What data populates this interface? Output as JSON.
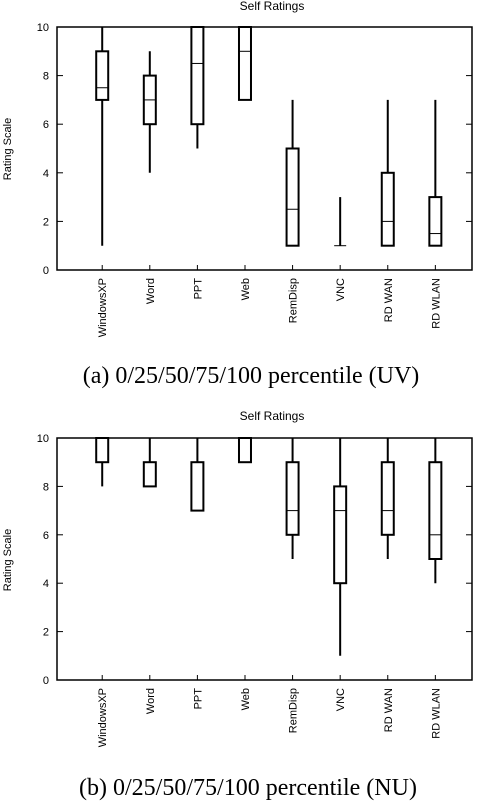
{
  "chart_data": [
    {
      "type": "box",
      "title": "Self Ratings",
      "ylabel": "Rating Scale",
      "caption": "(a) 0/25/50/75/100 percentile (UV)",
      "ylim": [
        0,
        10
      ],
      "yticks": [
        "0",
        "2",
        "4",
        "6",
        "8",
        "10"
      ],
      "categories": [
        "WindowsXP",
        "Word",
        "PPT",
        "Web",
        "RemDisp",
        "VNC",
        "RD WAN",
        "RD WLAN"
      ],
      "series": [
        {
          "min": 1,
          "q1": 7,
          "median": 7.5,
          "q3": 9,
          "max": 10
        },
        {
          "min": 4,
          "q1": 6,
          "median": 7,
          "q3": 8,
          "max": 9
        },
        {
          "min": 5,
          "q1": 6,
          "median": 8.5,
          "q3": 10,
          "max": 10
        },
        {
          "min": 7,
          "q1": 7,
          "median": 9,
          "q3": 10,
          "max": 10
        },
        {
          "min": 1,
          "q1": 1,
          "median": 2.5,
          "q3": 5,
          "max": 7
        },
        {
          "min": 1,
          "q1": 1,
          "median": 1,
          "q3": 1,
          "max": 3
        },
        {
          "min": 1,
          "q1": 1,
          "median": 2,
          "q3": 4,
          "max": 7
        },
        {
          "min": 1,
          "q1": 1,
          "median": 1.5,
          "q3": 3,
          "max": 7
        }
      ]
    },
    {
      "type": "box",
      "title": "Self Ratings",
      "ylabel": "Rating Scale",
      "caption": "(b) 0/25/50/75/100 percentile (NU)",
      "ylim": [
        0,
        10
      ],
      "yticks": [
        "0",
        "2",
        "4",
        "6",
        "8",
        "10"
      ],
      "categories": [
        "WindowsXP",
        "Word",
        "PPT",
        "Web",
        "RemDisp",
        "VNC",
        "RD WAN",
        "RD WLAN"
      ],
      "series": [
        {
          "min": 8,
          "q1": 9,
          "median": 10,
          "q3": 10,
          "max": 10
        },
        {
          "min": 8,
          "q1": 8,
          "median": 9,
          "q3": 9,
          "max": 10
        },
        {
          "min": 7,
          "q1": 7,
          "median": 9,
          "q3": 9,
          "max": 10
        },
        {
          "min": 9,
          "q1": 9,
          "median": 10,
          "q3": 10,
          "max": 10
        },
        {
          "min": 5,
          "q1": 6,
          "median": 7,
          "q3": 9,
          "max": 10
        },
        {
          "min": 1,
          "q1": 4,
          "median": 7,
          "q3": 8,
          "max": 10
        },
        {
          "min": 5,
          "q1": 6,
          "median": 7,
          "q3": 9,
          "max": 10
        },
        {
          "min": 4,
          "q1": 5,
          "median": 6,
          "q3": 9,
          "max": 10
        }
      ]
    }
  ]
}
